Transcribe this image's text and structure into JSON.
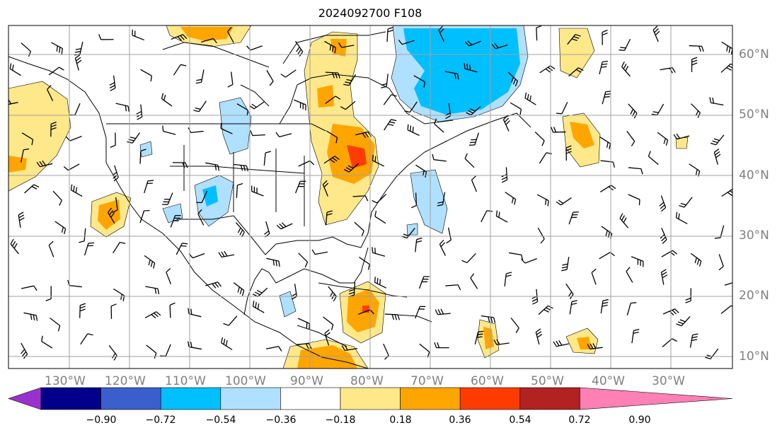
{
  "title": "2024092700 F108",
  "lat_labels": [
    "60°N",
    "50°N",
    "40°N",
    "30°N",
    "20°N",
    "10°N"
  ],
  "lon_labels": [
    "130°W",
    "120°W",
    "110°W",
    "100°W",
    "90°W",
    "80°W",
    "70°W",
    "60°W",
    "50°W",
    "40°W",
    "30°W"
  ],
  "colorbar": {
    "ticks": [
      "−0.90",
      "−0.72",
      "−0.54",
      "−0.36",
      "−0.18",
      "0.18",
      "0.36",
      "0.54",
      "0.72",
      "0.90"
    ],
    "colors": [
      "#9932cc",
      "#00008b",
      "#3a5fcd",
      "#00bfff",
      "#b0e0ff",
      "#ffffff",
      "#ffe88a",
      "#ffa500",
      "#ff3c00",
      "#b22222",
      "#ff80b4"
    ]
  }
}
